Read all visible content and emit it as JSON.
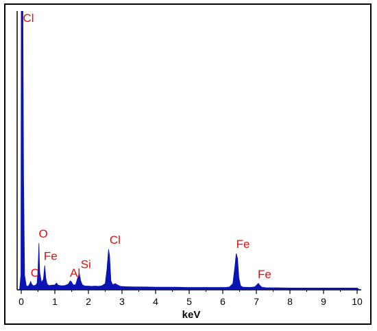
{
  "chart_data": {
    "type": "area",
    "title": "",
    "xlabel": "keV",
    "ylabel": "",
    "xlim": [
      0,
      10
    ],
    "ylim": [
      0,
      1
    ],
    "grid": false,
    "x_ticks": [
      "0",
      "1",
      "2",
      "3",
      "4",
      "5",
      "6",
      "7",
      "8",
      "9",
      "10"
    ],
    "series": [
      {
        "fill_color": "#0a14b4",
        "points": [
          [
            -0.05,
            0.0
          ],
          [
            -0.01,
            0.05
          ],
          [
            0.0,
            0.999
          ],
          [
            0.05,
            0.999
          ],
          [
            0.07,
            0.4
          ],
          [
            0.1,
            0.05
          ],
          [
            0.15,
            0.012
          ],
          [
            0.2,
            0.01
          ],
          [
            0.25,
            0.018
          ],
          [
            0.28,
            0.028
          ],
          [
            0.31,
            0.018
          ],
          [
            0.36,
            0.012
          ],
          [
            0.42,
            0.014
          ],
          [
            0.47,
            0.02
          ],
          [
            0.5,
            0.07
          ],
          [
            0.525,
            0.165
          ],
          [
            0.55,
            0.06
          ],
          [
            0.6,
            0.025
          ],
          [
            0.66,
            0.035
          ],
          [
            0.7,
            0.085
          ],
          [
            0.73,
            0.04
          ],
          [
            0.77,
            0.018
          ],
          [
            0.82,
            0.013
          ],
          [
            0.9,
            0.014
          ],
          [
            1.0,
            0.015
          ],
          [
            1.05,
            0.022
          ],
          [
            1.1,
            0.014
          ],
          [
            1.2,
            0.012
          ],
          [
            1.3,
            0.013
          ],
          [
            1.4,
            0.018
          ],
          [
            1.46,
            0.03
          ],
          [
            1.5,
            0.025
          ],
          [
            1.55,
            0.015
          ],
          [
            1.62,
            0.016
          ],
          [
            1.68,
            0.04
          ],
          [
            1.73,
            0.058
          ],
          [
            1.77,
            0.03
          ],
          [
            1.82,
            0.015
          ],
          [
            1.9,
            0.011
          ],
          [
            2.0,
            0.011
          ],
          [
            2.1,
            0.01
          ],
          [
            2.2,
            0.011
          ],
          [
            2.3,
            0.01
          ],
          [
            2.4,
            0.012
          ],
          [
            2.5,
            0.02
          ],
          [
            2.55,
            0.07
          ],
          [
            2.6,
            0.143
          ],
          [
            2.63,
            0.12
          ],
          [
            2.67,
            0.03
          ],
          [
            2.72,
            0.016
          ],
          [
            2.8,
            0.02
          ],
          [
            2.85,
            0.016
          ],
          [
            2.95,
            0.01
          ],
          [
            3.1,
            0.009
          ],
          [
            3.4,
            0.008
          ],
          [
            3.7,
            0.008
          ],
          [
            4.0,
            0.007
          ],
          [
            4.3,
            0.007
          ],
          [
            4.6,
            0.007
          ],
          [
            4.9,
            0.006
          ],
          [
            5.2,
            0.006
          ],
          [
            5.5,
            0.006
          ],
          [
            5.8,
            0.006
          ],
          [
            6.1,
            0.006
          ],
          [
            6.2,
            0.008
          ],
          [
            6.3,
            0.02
          ],
          [
            6.36,
            0.08
          ],
          [
            6.4,
            0.128
          ],
          [
            6.44,
            0.11
          ],
          [
            6.48,
            0.04
          ],
          [
            6.53,
            0.012
          ],
          [
            6.6,
            0.007
          ],
          [
            6.8,
            0.006
          ],
          [
            6.95,
            0.008
          ],
          [
            7.02,
            0.016
          ],
          [
            7.06,
            0.021
          ],
          [
            7.1,
            0.014
          ],
          [
            7.16,
            0.007
          ],
          [
            7.3,
            0.005
          ],
          [
            7.6,
            0.005
          ],
          [
            8.0,
            0.004
          ],
          [
            8.5,
            0.004
          ],
          [
            9.0,
            0.004
          ],
          [
            9.5,
            0.004
          ],
          [
            10.0,
            0.004
          ],
          [
            10.05,
            0.0
          ]
        ]
      }
    ],
    "annotations": [
      {
        "text": "Cl",
        "x": 0.05,
        "y": 0.96
      },
      {
        "text": "O",
        "x": 0.52,
        "y": 0.185
      },
      {
        "text": "Fe",
        "x": 0.67,
        "y": 0.105
      },
      {
        "text": "C",
        "x": 0.28,
        "y": 0.045
      },
      {
        "text": "Al",
        "x": 1.45,
        "y": 0.045
      },
      {
        "text": "Si",
        "x": 1.77,
        "y": 0.075
      },
      {
        "text": "Cl",
        "x": 2.63,
        "y": 0.163
      },
      {
        "text": "Fe",
        "x": 6.4,
        "y": 0.148
      },
      {
        "text": "Fe",
        "x": 7.04,
        "y": 0.04
      }
    ]
  }
}
